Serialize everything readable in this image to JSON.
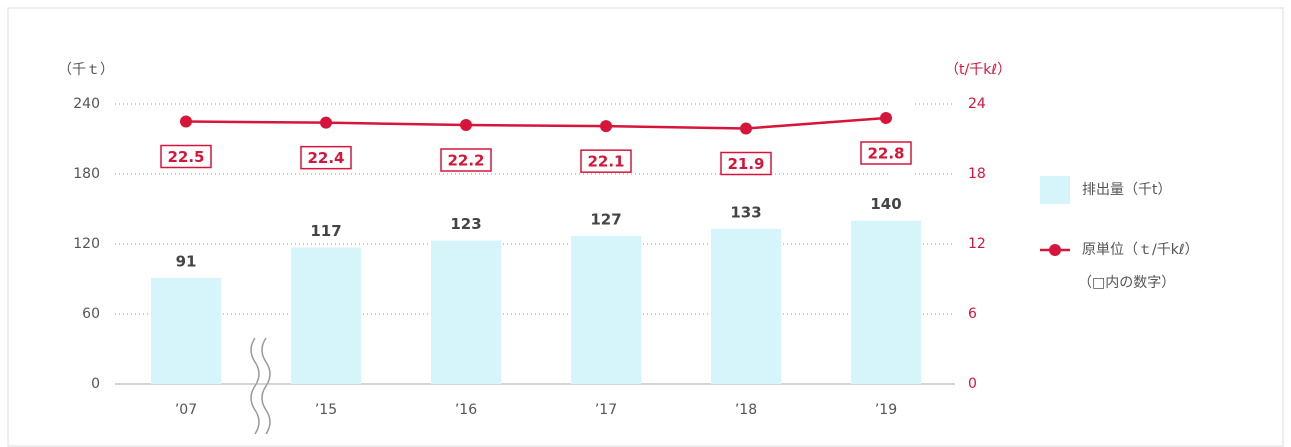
{
  "chart_data": {
    "type": "bar_line",
    "y_label": "（千ｔ）",
    "y2_label": "（t/千kℓ）",
    "categories": [
      "’07",
      "’15",
      "’16",
      "’17",
      "’18",
      "’19"
    ],
    "series": [
      {
        "name": "排出量（千t）",
        "type": "bar",
        "color": "#d6f5fa",
        "values": [
          91,
          117,
          123,
          127,
          133,
          140
        ]
      },
      {
        "name": "原単位（ｔ/千kℓ）",
        "type": "line",
        "axis": "y2",
        "color": "#d7153a",
        "values": [
          22.5,
          22.4,
          22.2,
          22.1,
          21.9,
          22.8
        ]
      }
    ],
    "legend_note": "（□内の数字）",
    "ylim": [
      0,
      240
    ],
    "yticks": [
      0,
      60,
      120,
      180,
      240
    ],
    "y2lim": [
      0,
      24
    ],
    "y2ticks": [
      0,
      6,
      12,
      18,
      24
    ],
    "grid": true
  }
}
